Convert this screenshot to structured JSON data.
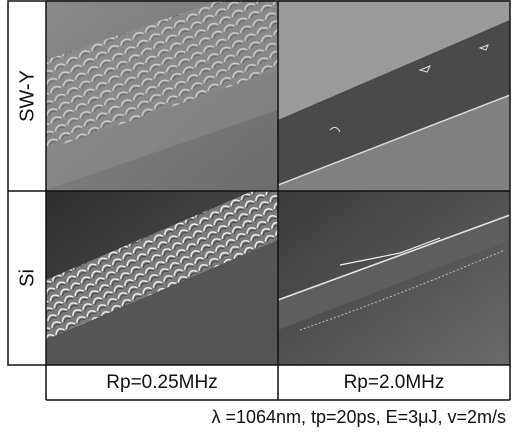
{
  "row_labels": [
    "SW-Y",
    "Si"
  ],
  "column_labels": [
    "Rp=0.25MHz",
    "Rp=2.0MHz"
  ],
  "caption": "λ =1064nm, tp=20ps, E=3μJ, v=2m/s"
}
